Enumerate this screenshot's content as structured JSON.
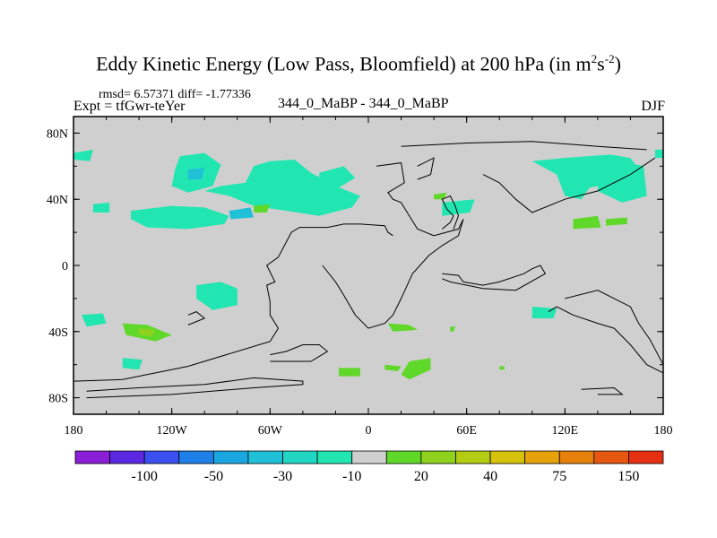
{
  "chart_data": {
    "type": "heatmap",
    "title": "Eddy Kinetic Energy (Low Pass, Bloomfield) at 200 hPa (in m",
    "title_unit_exp1": "2",
    "title_unit_mid": "s",
    "title_unit_exp2": "-2",
    "title_end": ")",
    "stats": "rmsd= 6.57371 diff= -1.77336",
    "expt": "Expt = tfGwr-teYer",
    "subtitle": "344_0_MaBP - 344_0_MaBP",
    "season": "DJF",
    "xlim": [
      -180,
      180
    ],
    "ylim": [
      -90,
      90
    ],
    "x_ticks": [
      {
        "value": -180,
        "label": "180"
      },
      {
        "value": -120,
        "label": "120W"
      },
      {
        "value": -60,
        "label": "60W"
      },
      {
        "value": 0,
        "label": "0"
      },
      {
        "value": 60,
        "label": "60E"
      },
      {
        "value": 120,
        "label": "120E"
      },
      {
        "value": 180,
        "label": "180"
      }
    ],
    "y_ticks": [
      {
        "value": 80,
        "label": "80N"
      },
      {
        "value": 40,
        "label": "40N"
      },
      {
        "value": 0,
        "label": "0"
      },
      {
        "value": -40,
        "label": "40S"
      },
      {
        "value": -80,
        "label": "80S"
      }
    ],
    "colorbar": {
      "colors": [
        "#8b1fd8",
        "#5a28e0",
        "#3a50f0",
        "#1f7fe8",
        "#1aa6e0",
        "#1fc0d8",
        "#22d6c4",
        "#22e6b2",
        "#cfcfcf",
        "#5fd82a",
        "#8ed21e",
        "#b2cc14",
        "#d6c20a",
        "#e6a20a",
        "#e6800a",
        "#e6580f",
        "#e63012"
      ],
      "labels": [
        {
          "after_index": 1,
          "text": "-100"
        },
        {
          "after_index": 3,
          "text": "-50"
        },
        {
          "after_index": 5,
          "text": "-30"
        },
        {
          "after_index": 7,
          "text": "-10"
        },
        {
          "after_index": 9,
          "text": "20"
        },
        {
          "after_index": 11,
          "text": "40"
        },
        {
          "after_index": 13,
          "text": "75"
        },
        {
          "after_index": 15,
          "text": "150"
        }
      ]
    },
    "neutral_color": "#cfcfcf",
    "anomaly_regions": [
      {
        "sign": "neg",
        "level": -10,
        "points": [
          [
            -180,
            68
          ],
          [
            -168,
            70
          ],
          [
            -170,
            63
          ],
          [
            -180,
            64
          ]
        ]
      },
      {
        "sign": "neg",
        "level": -10,
        "points": [
          [
            -115,
            66
          ],
          [
            -100,
            68
          ],
          [
            -90,
            61
          ],
          [
            -95,
            48
          ],
          [
            -110,
            44
          ],
          [
            -120,
            48
          ],
          [
            -118,
            58
          ]
        ]
      },
      {
        "sign": "neg",
        "level": -10,
        "points": [
          [
            -100,
            45
          ],
          [
            -85,
            42
          ],
          [
            -70,
            36
          ],
          [
            -50,
            33
          ],
          [
            -30,
            30
          ],
          [
            -10,
            35
          ],
          [
            -5,
            42
          ],
          [
            -20,
            48
          ],
          [
            -35,
            56
          ],
          [
            -45,
            64
          ],
          [
            -60,
            63
          ],
          [
            -70,
            60
          ],
          [
            -75,
            50
          ],
          [
            -90,
            48
          ]
        ]
      },
      {
        "sign": "neg",
        "level": -10,
        "points": [
          [
            -30,
            56
          ],
          [
            -15,
            60
          ],
          [
            -8,
            53
          ],
          [
            -18,
            47
          ],
          [
            -30,
            48
          ]
        ]
      },
      {
        "sign": "neg",
        "level": -10,
        "points": [
          [
            -168,
            37
          ],
          [
            -158,
            38
          ],
          [
            -158,
            32
          ],
          [
            -168,
            32
          ]
        ]
      },
      {
        "sign": "neg",
        "level": -10,
        "points": [
          [
            -145,
            33
          ],
          [
            -120,
            36
          ],
          [
            -100,
            35
          ],
          [
            -85,
            30
          ],
          [
            -88,
            25
          ],
          [
            -110,
            22
          ],
          [
            -135,
            23
          ],
          [
            -145,
            28
          ]
        ]
      },
      {
        "sign": "neg",
        "level": -10,
        "points": [
          [
            45,
            38
          ],
          [
            65,
            40
          ],
          [
            62,
            32
          ],
          [
            45,
            30
          ]
        ]
      },
      {
        "sign": "neg",
        "level": -10,
        "points": [
          [
            100,
            63
          ],
          [
            120,
            65
          ],
          [
            148,
            67
          ],
          [
            160,
            65
          ],
          [
            165,
            58
          ],
          [
            150,
            50
          ],
          [
            135,
            47
          ],
          [
            130,
            40
          ],
          [
            120,
            42
          ],
          [
            115,
            55
          ]
        ]
      },
      {
        "sign": "neg",
        "level": -10,
        "points": [
          [
            140,
            58
          ],
          [
            155,
            63
          ],
          [
            168,
            60
          ],
          [
            170,
            42
          ],
          [
            155,
            38
          ],
          [
            140,
            45
          ]
        ]
      },
      {
        "sign": "neg",
        "level": -10,
        "points": [
          [
            175,
            70
          ],
          [
            180,
            70
          ],
          [
            180,
            65
          ],
          [
            175,
            65
          ]
        ]
      },
      {
        "sign": "neg",
        "level": -10,
        "points": [
          [
            -105,
            -12
          ],
          [
            -90,
            -10
          ],
          [
            -80,
            -14
          ],
          [
            -80,
            -24
          ],
          [
            -95,
            -27
          ],
          [
            -105,
            -20
          ]
        ]
      },
      {
        "sign": "neg",
        "level": -10,
        "points": [
          [
            -175,
            -30
          ],
          [
            -162,
            -29
          ],
          [
            -160,
            -35
          ],
          [
            -172,
            -37
          ]
        ]
      },
      {
        "sign": "neg",
        "level": -10,
        "points": [
          [
            -150,
            -56
          ],
          [
            -138,
            -57
          ],
          [
            -140,
            -63
          ],
          [
            -150,
            -62
          ]
        ]
      },
      {
        "sign": "neg",
        "level": -10,
        "points": [
          [
            100,
            -25
          ],
          [
            115,
            -26
          ],
          [
            113,
            -32
          ],
          [
            100,
            -32
          ]
        ]
      },
      {
        "sign": "neg",
        "level": -30,
        "points": [
          [
            -110,
            58
          ],
          [
            -100,
            59
          ],
          [
            -102,
            52
          ],
          [
            -110,
            52
          ]
        ]
      },
      {
        "sign": "neg",
        "level": -30,
        "points": [
          [
            -85,
            33
          ],
          [
            -72,
            35
          ],
          [
            -70,
            29
          ],
          [
            -84,
            28
          ]
        ]
      },
      {
        "sign": "pos",
        "level": 20,
        "points": [
          [
            -70,
            36
          ],
          [
            -60,
            37
          ],
          [
            -62,
            32
          ],
          [
            -70,
            32
          ]
        ]
      },
      {
        "sign": "pos",
        "level": 20,
        "points": [
          [
            40,
            43
          ],
          [
            48,
            44
          ],
          [
            46,
            40
          ],
          [
            40,
            40
          ]
        ]
      },
      {
        "sign": "pos",
        "level": 20,
        "points": [
          [
            125,
            28
          ],
          [
            140,
            30
          ],
          [
            142,
            23
          ],
          [
            125,
            22
          ]
        ]
      },
      {
        "sign": "pos",
        "level": 20,
        "points": [
          [
            145,
            28
          ],
          [
            158,
            29
          ],
          [
            158,
            25
          ],
          [
            145,
            24
          ]
        ]
      },
      {
        "sign": "pos",
        "level": 20,
        "points": [
          [
            -150,
            -35
          ],
          [
            -135,
            -36
          ],
          [
            -120,
            -42
          ],
          [
            -130,
            -46
          ],
          [
            -148,
            -42
          ]
        ]
      },
      {
        "sign": "pos",
        "level": 20,
        "points": [
          [
            12,
            -35
          ],
          [
            25,
            -36
          ],
          [
            30,
            -39
          ],
          [
            15,
            -40
          ]
        ]
      },
      {
        "sign": "pos",
        "level": 20,
        "points": [
          [
            50,
            -37
          ],
          [
            53,
            -37
          ],
          [
            52,
            -40
          ],
          [
            50,
            -40
          ]
        ]
      },
      {
        "sign": "pos",
        "level": 20,
        "points": [
          [
            -18,
            -62
          ],
          [
            -5,
            -62
          ],
          [
            -5,
            -67
          ],
          [
            -18,
            -67
          ]
        ]
      },
      {
        "sign": "pos",
        "level": 20,
        "points": [
          [
            10,
            -60
          ],
          [
            20,
            -61
          ],
          [
            18,
            -64
          ],
          [
            10,
            -63
          ]
        ]
      },
      {
        "sign": "pos",
        "level": 20,
        "points": [
          [
            25,
            -58
          ],
          [
            38,
            -56
          ],
          [
            38,
            -63
          ],
          [
            25,
            -69
          ],
          [
            20,
            -66
          ]
        ]
      },
      {
        "sign": "pos",
        "level": 20,
        "points": [
          [
            80,
            -61
          ],
          [
            83,
            -61
          ],
          [
            83,
            -63
          ],
          [
            80,
            -63
          ]
        ]
      },
      {
        "sign": "pos",
        "level": 40,
        "points": [
          [
            -140,
            -38
          ],
          [
            -130,
            -39
          ],
          [
            -132,
            -43
          ],
          [
            -140,
            -42
          ]
        ]
      }
    ],
    "coastlines": [
      [
        [
          -172,
          -80
        ],
        [
          -120,
          -78
        ],
        [
          -70,
          -74
        ],
        [
          -40,
          -72
        ],
        [
          -40,
          -70
        ],
        [
          -70,
          -68
        ],
        [
          -100,
          -72
        ],
        [
          -140,
          -74
        ],
        [
          -172,
          -76
        ]
      ],
      [
        [
          -180,
          -70
        ],
        [
          -150,
          -69
        ],
        [
          -110,
          -61
        ],
        [
          -60,
          -46
        ],
        [
          -55,
          -38
        ],
        [
          -60,
          -30
        ],
        [
          -60,
          -22
        ],
        [
          -62,
          -12
        ],
        [
          -57,
          -10
        ],
        [
          -62,
          0
        ],
        [
          -55,
          5
        ],
        [
          -47,
          20
        ],
        [
          -42,
          23
        ],
        [
          -25,
          23
        ],
        [
          -15,
          25
        ],
        [
          -5,
          25
        ],
        [
          10,
          24
        ],
        [
          12,
          20
        ],
        [
          15,
          18
        ]
      ],
      [
        [
          -60,
          -54
        ],
        [
          -50,
          -52
        ],
        [
          -40,
          -48
        ],
        [
          -30,
          -48
        ],
        [
          -25,
          -52
        ],
        [
          -35,
          -58
        ],
        [
          -60,
          -58
        ]
      ],
      [
        [
          -110,
          -30
        ],
        [
          -105,
          -28
        ],
        [
          -100,
          -32
        ],
        [
          -110,
          -36
        ]
      ],
      [
        [
          5,
          60
        ],
        [
          20,
          62
        ],
        [
          22,
          50
        ],
        [
          12,
          44
        ],
        [
          15,
          40
        ],
        [
          20,
          38
        ],
        [
          25,
          30
        ],
        [
          30,
          22
        ],
        [
          40,
          18
        ],
        [
          55,
          22
        ],
        [
          58,
          28
        ],
        [
          55,
          18
        ],
        [
          45,
          12
        ],
        [
          37,
          6
        ],
        [
          27,
          -5
        ],
        [
          20,
          -20
        ],
        [
          15,
          -30
        ],
        [
          10,
          -35
        ],
        [
          0,
          -38
        ],
        [
          -8,
          -30
        ],
        [
          -15,
          -18
        ],
        [
          -20,
          -10
        ],
        [
          -28,
          0
        ]
      ],
      [
        [
          45,
          22
        ],
        [
          50,
          26
        ],
        [
          52,
          30
        ],
        [
          48,
          34
        ],
        [
          45,
          40
        ],
        [
          50,
          42
        ],
        [
          53,
          36
        ],
        [
          55,
          30
        ],
        [
          52,
          22
        ]
      ],
      [
        [
          45,
          -5
        ],
        [
          55,
          -6
        ],
        [
          58,
          -10
        ],
        [
          70,
          -12
        ],
        [
          80,
          -10
        ],
        [
          95,
          -5
        ],
        [
          100,
          -2
        ],
        [
          105,
          0
        ],
        [
          108,
          -5
        ],
        [
          90,
          -15
        ],
        [
          70,
          -14
        ],
        [
          50,
          -10
        ],
        [
          45,
          -8
        ]
      ],
      [
        [
          120,
          -20
        ],
        [
          140,
          -15
        ],
        [
          150,
          -20
        ],
        [
          160,
          -25
        ],
        [
          165,
          -35
        ],
        [
          172,
          -45
        ],
        [
          180,
          -60
        ],
        [
          180,
          -65
        ],
        [
          170,
          -60
        ],
        [
          160,
          -48
        ],
        [
          150,
          -38
        ],
        [
          140,
          -35
        ],
        [
          125,
          -30
        ],
        [
          115,
          -25
        ],
        [
          110,
          -28
        ]
      ],
      [
        [
          130,
          -75
        ],
        [
          150,
          -74
        ],
        [
          155,
          -78
        ],
        [
          140,
          -78
        ]
      ],
      [
        [
          70,
          55
        ],
        [
          80,
          50
        ],
        [
          90,
          40
        ],
        [
          100,
          32
        ],
        [
          120,
          40
        ],
        [
          140,
          45
        ],
        [
          160,
          55
        ],
        [
          175,
          65
        ]
      ],
      [
        [
          20,
          72
        ],
        [
          60,
          74
        ],
        [
          100,
          75
        ],
        [
          140,
          72
        ],
        [
          170,
          70
        ]
      ],
      [
        [
          30,
          60
        ],
        [
          40,
          65
        ],
        [
          38,
          55
        ],
        [
          30,
          52
        ]
      ]
    ]
  }
}
